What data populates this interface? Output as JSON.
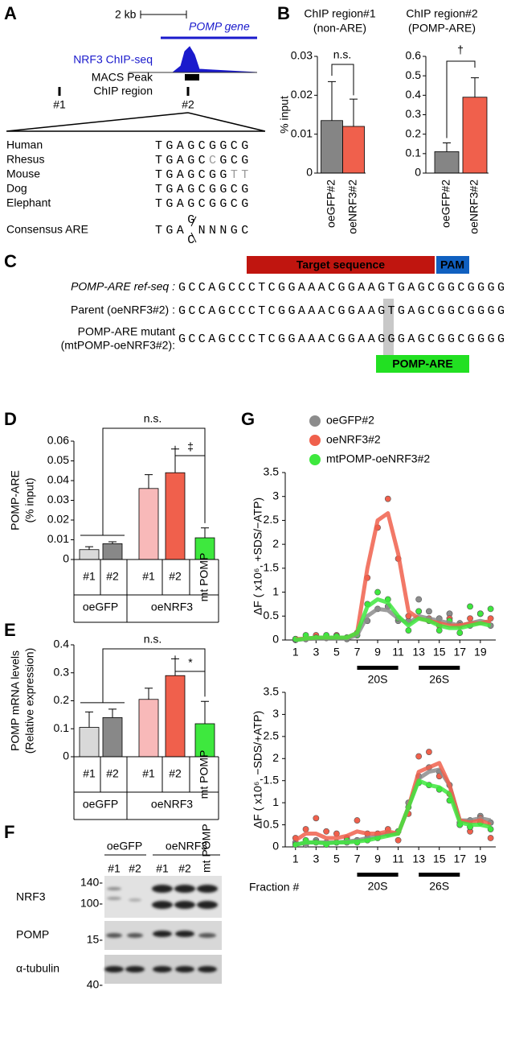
{
  "panels": [
    "A",
    "B",
    "C",
    "D",
    "E",
    "F",
    "G"
  ],
  "panel_a": {
    "scale": "2 kb",
    "gene": "POMP gene",
    "track": "NRF3 ChIP-seq",
    "peak": "MACS Peak",
    "region": "ChIP region",
    "regions": [
      "#1",
      "#2"
    ],
    "alignment": [
      {
        "species": "Human",
        "seq": [
          {
            "text": "TGAGCGGCG"
          }
        ]
      },
      {
        "species": "Rhesus",
        "seq": [
          {
            "text": "TGAGC"
          },
          {
            "text": "C",
            "color": "#999999"
          },
          {
            "text": "GCG"
          }
        ]
      },
      {
        "species": "Mouse",
        "seq": [
          {
            "text": "TGAGCGG"
          },
          {
            "text": "TT",
            "color": "#999999"
          }
        ]
      },
      {
        "species": "Dog",
        "seq": [
          {
            "text": "TGAGCGGCG"
          }
        ]
      },
      {
        "species": "Elephant",
        "seq": [
          {
            "text": "TGAGCGGCG"
          }
        ]
      }
    ],
    "consensus": {
      "label": "Consensus ARE",
      "prefix": "TGA",
      "top": "G",
      "bottom": "C",
      "suffix": "NNNGC"
    }
  },
  "panel_c": {
    "target": "Target sequence",
    "pam": "PAM",
    "motif": "POMP-ARE",
    "rows": [
      {
        "label": [
          "POMP-ARE ref-seq :"
        ],
        "seq": "GCCAGCCCTCGGAAACGGAAGTGAGCGGCGGGG"
      },
      {
        "label": [
          "Parent (oeNRF3#2) :"
        ],
        "seq": "GCCAGCCCTCGGAAACGGAAGTGAGCGGCGGGG"
      },
      {
        "label": [
          "POMP-ARE mutant",
          "(mtPOMP-oeNRF3#2):"
        ],
        "seq": "GCCAGCCCTCGGAAACGGAAGGGAGCGGCGGGG"
      }
    ]
  },
  "panel_f": {
    "groups": [
      "oeGFP",
      "oeNRF3"
    ],
    "lanes": [
      "#1",
      "#2",
      "#1",
      "#2",
      "mt POMP"
    ],
    "blots": [
      {
        "name": "NRF3",
        "markers": [
          "140-",
          "100-"
        ]
      },
      {
        "name": "POMP",
        "markers": [
          "15-"
        ]
      },
      {
        "name": "α-tubulin",
        "markers": [
          "40-"
        ]
      }
    ]
  },
  "chart_data": [
    {
      "type": "bar",
      "title": "ChIP region#1",
      "subtitle": "(non-ARE)",
      "ylabel": [
        "% input"
      ],
      "categories": [
        "oeGFP#2",
        "oeNRF3#2"
      ],
      "values": [
        0.0135,
        0.012
      ],
      "errors": [
        0.01,
        0.007
      ],
      "colors": [
        "#858585",
        "#f0604c"
      ],
      "ylim": [
        0,
        0.03
      ],
      "yticks": [
        0,
        0.01,
        0.02,
        0.03
      ],
      "annotations": [
        "n.s."
      ]
    },
    {
      "type": "bar",
      "title": "ChIP region#2",
      "subtitle": "(POMP-ARE)",
      "categories": [
        "oeGFP#2",
        "oeNRF3#2"
      ],
      "values": [
        0.11,
        0.39
      ],
      "errors": [
        0.045,
        0.1
      ],
      "colors": [
        "#858585",
        "#f0604c"
      ],
      "ylim": [
        0,
        0.6
      ],
      "yticks": [
        0,
        0.1,
        0.2,
        0.3,
        0.4,
        0.5,
        0.6
      ],
      "annotations": [
        "†"
      ]
    },
    {
      "type": "bar",
      "ylabel": [
        "POMP-ARE",
        "(% input)"
      ],
      "categories": [
        "#1",
        "#2",
        "#1",
        "#2",
        "mt POMP"
      ],
      "groups": [
        "oeGFP",
        "oeNRF3"
      ],
      "values": [
        0.005,
        0.008,
        0.036,
        0.044,
        0.011
      ],
      "errors": [
        0.0015,
        0.001,
        0.007,
        0.012,
        0.005
      ],
      "colors": [
        "#d9d9d9",
        "#888888",
        "#f8b9b9",
        "#f0604c",
        "#3ee83e"
      ],
      "ylim": [
        0,
        0.06
      ],
      "yticks": [
        0,
        0.01,
        0.02,
        0.03,
        0.04,
        0.05,
        0.06
      ],
      "annotations": [
        "n.s.",
        "‡"
      ]
    },
    {
      "type": "bar",
      "ylabel": [
        "POMP mRNA levels",
        "(Relative expression)"
      ],
      "categories": [
        "#1",
        "#2",
        "#1",
        "#2",
        "mt POMP"
      ],
      "groups": [
        "oeGFP",
        "oeNRF3"
      ],
      "values": [
        0.105,
        0.14,
        0.205,
        0.29,
        0.118
      ],
      "errors": [
        0.055,
        0.03,
        0.04,
        0.06,
        0.08
      ],
      "colors": [
        "#d9d9d9",
        "#888888",
        "#f8b9b9",
        "#f0604c",
        "#3ee83e"
      ],
      "ylim": [
        0,
        0.4
      ],
      "yticks": [
        0,
        0.1,
        0.2,
        0.3,
        0.4
      ],
      "annotations": [
        "n.s.",
        "*"
      ]
    },
    {
      "type": "line",
      "ylabel": "ΔF ( x10⁶, +SDS/−ATP)",
      "x": [
        1,
        2,
        3,
        4,
        5,
        6,
        7,
        8,
        9,
        10,
        11,
        12,
        13,
        14,
        15,
        16,
        17,
        18,
        19,
        20
      ],
      "xlim": [
        0,
        20.5
      ],
      "xticks": [
        1,
        3,
        5,
        7,
        9,
        11,
        13,
        15,
        17,
        19
      ],
      "ylim": [
        0,
        3.5
      ],
      "yticks": [
        0,
        0.5,
        1,
        1.5,
        2,
        2.5,
        3,
        3.5
      ],
      "ranges": [
        {
          "label": "20S",
          "from": 7,
          "to": 11
        },
        {
          "label": "26S",
          "from": 13,
          "to": 17
        }
      ],
      "series": [
        {
          "name": "oeGFP#2",
          "color": "#8c8c8c",
          "values": [
            0,
            0.02,
            0.03,
            0.03,
            0.03,
            0.03,
            0.1,
            0.5,
            0.65,
            0.62,
            0.45,
            0.35,
            0.5,
            0.45,
            0.4,
            0.35,
            0.3,
            0.35,
            0.4,
            0.35
          ],
          "points": [
            0,
            0.02,
            0.05,
            0.04,
            0.05,
            0.02,
            0.1,
            0.4,
            0.65,
            0.7,
            0.4,
            0.4,
            0.85,
            0.6,
            0.45,
            0.55,
            0.35,
            0.3,
            0.55,
            0.3
          ]
        },
        {
          "name": "oeNRF3#2",
          "color": "#f0604c",
          "values": [
            0.02,
            0.03,
            0.05,
            0.05,
            0.05,
            0.05,
            0.15,
            1.5,
            2.5,
            2.65,
            1.8,
            0.6,
            0.45,
            0.4,
            0.35,
            0.3,
            0.3,
            0.35,
            0.35,
            0.4
          ],
          "points": [
            0.02,
            0.05,
            0.1,
            0.05,
            0.1,
            0.05,
            0.15,
            1.3,
            2.35,
            2.95,
            1.7,
            0.5,
            0.6,
            0.45,
            0.3,
            0.45,
            0.3,
            0.45,
            0.55,
            0.45
          ]
        },
        {
          "name": "mtPOMP-oeNRF3#2",
          "color": "#3ee83e",
          "values": [
            0,
            0.03,
            0.05,
            0.05,
            0.05,
            0.05,
            0.15,
            0.7,
            0.85,
            0.78,
            0.5,
            0.3,
            0.45,
            0.4,
            0.3,
            0.25,
            0.25,
            0.3,
            0.35,
            0.3
          ],
          "points": [
            0.02,
            0.1,
            0.05,
            0.1,
            0.08,
            0.05,
            0.1,
            0.75,
            1.0,
            0.85,
            0.45,
            0.2,
            0.6,
            0.4,
            0.2,
            0.4,
            0.15,
            0.7,
            0.55,
            0.65
          ]
        }
      ]
    },
    {
      "type": "line",
      "ylabel": "ΔF ( x10⁶, −SDS/+ATP)",
      "xlabel": "Fraction #",
      "x": [
        1,
        2,
        3,
        4,
        5,
        6,
        7,
        8,
        9,
        10,
        11,
        12,
        13,
        14,
        15,
        16,
        17,
        18,
        19,
        20
      ],
      "xlim": [
        0,
        20.5
      ],
      "xticks": [
        1,
        3,
        5,
        7,
        9,
        11,
        13,
        15,
        17,
        19
      ],
      "ylim": [
        0,
        3.5
      ],
      "yticks": [
        0,
        0.5,
        1,
        1.5,
        2,
        2.5,
        3,
        3.5
      ],
      "ranges": [
        {
          "label": "20S",
          "from": 7,
          "to": 11
        },
        {
          "label": "26S",
          "from": 13,
          "to": 17
        }
      ],
      "series": [
        {
          "color": "#8c8c8c",
          "values": [
            0.05,
            0.1,
            0.1,
            0.1,
            0.1,
            0.12,
            0.15,
            0.2,
            0.25,
            0.3,
            0.3,
            0.9,
            1.55,
            1.7,
            1.75,
            1.4,
            0.6,
            0.6,
            0.65,
            0.6
          ],
          "points": [
            0.1,
            0.05,
            0.15,
            0.1,
            0.1,
            0.1,
            0.15,
            0.2,
            0.25,
            0.3,
            0.35,
            1.0,
            1.6,
            1.8,
            1.7,
            1.4,
            0.55,
            0.6,
            0.7,
            0.55
          ]
        },
        {
          "color": "#f0604c",
          "values": [
            0.15,
            0.3,
            0.3,
            0.2,
            0.2,
            0.25,
            0.35,
            0.3,
            0.3,
            0.35,
            0.3,
            0.9,
            1.7,
            1.8,
            1.9,
            1.4,
            0.6,
            0.55,
            0.6,
            0.5
          ],
          "points": [
            0.2,
            0.4,
            0.65,
            0.35,
            0.3,
            0.2,
            0.6,
            0.3,
            0.3,
            0.4,
            0.15,
            0.75,
            2.05,
            2.15,
            1.6,
            1.2,
            0.5,
            0.35,
            0.65,
            0.2
          ]
        },
        {
          "color": "#3ee83e",
          "values": [
            0.05,
            0.1,
            0.1,
            0.08,
            0.1,
            0.1,
            0.12,
            0.15,
            0.2,
            0.25,
            0.3,
            0.9,
            1.5,
            1.4,
            1.35,
            1.2,
            0.55,
            0.5,
            0.5,
            0.45
          ],
          "points": [
            0.05,
            0.15,
            0.1,
            0.05,
            0.1,
            0.15,
            0.1,
            0.15,
            0.2,
            0.3,
            0.35,
            0.9,
            1.45,
            1.4,
            1.3,
            1.05,
            0.5,
            0.45,
            0.55,
            0.4
          ]
        }
      ]
    }
  ]
}
